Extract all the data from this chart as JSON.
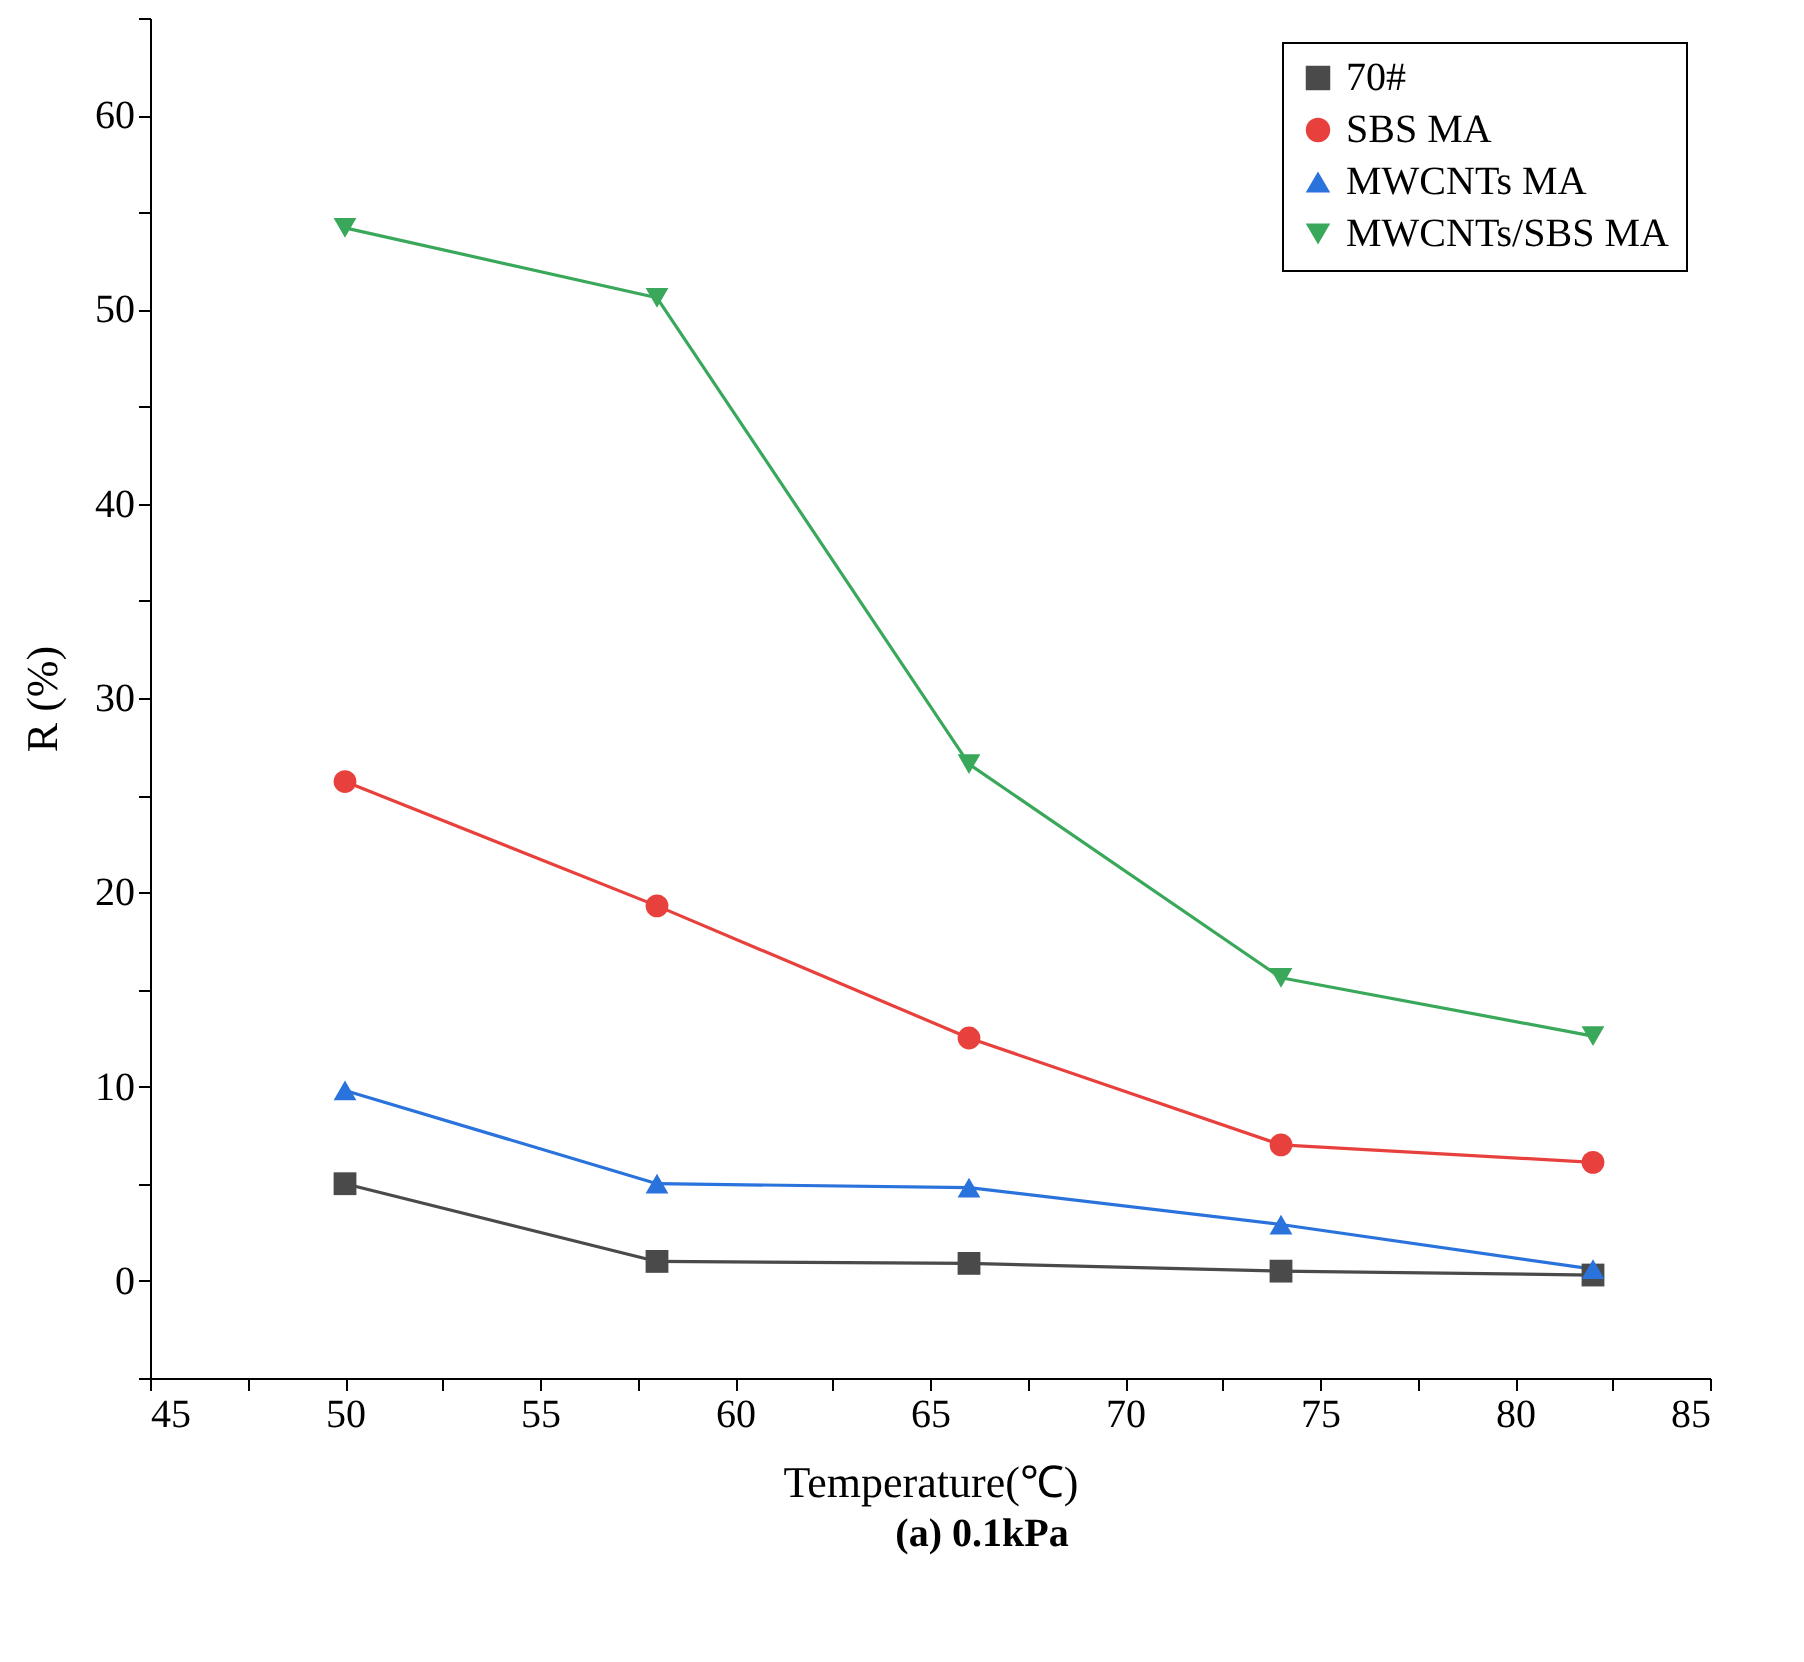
{
  "chart_data": {
    "type": "line",
    "xlabel": "Temperature(℃)",
    "ylabel": "R (%)",
    "annotations": [
      "(a) 0.1kPa"
    ],
    "x": [
      50,
      58,
      66,
      74,
      82
    ],
    "series": [
      {
        "name": "70#",
        "color": "#4a4a4a",
        "marker": "square",
        "values": [
          5.0,
          1.0,
          0.9,
          0.5,
          0.3
        ]
      },
      {
        "name": "SBS MA",
        "color": "#e8403c",
        "marker": "circle",
        "values": [
          25.7,
          19.3,
          12.5,
          7.0,
          6.1
        ]
      },
      {
        "name": "MWCNTs MA",
        "color": "#2b73dc",
        "marker": "triangle",
        "values": [
          9.8,
          5.0,
          4.8,
          2.9,
          0.6
        ]
      },
      {
        "name": "MWCNTs/SBS MA",
        "color": "#3aa85a",
        "marker": "triangle-down",
        "values": [
          54.2,
          50.6,
          26.6,
          15.6,
          12.6
        ]
      }
    ],
    "xlim": [
      45,
      85
    ],
    "xticks": [
      45,
      {
        "value": 47.5,
        "label": null
      },
      50,
      {
        "value": 52.5,
        "label": null
      },
      55,
      {
        "value": 57.5,
        "label": null
      },
      60,
      {
        "value": 62.5,
        "label": null
      },
      65,
      {
        "value": 67.5,
        "label": null
      },
      70,
      {
        "value": 72.5,
        "label": null
      },
      75,
      {
        "value": 77.5,
        "label": null
      },
      80,
      {
        "value": 82.5,
        "label": null
      },
      85
    ],
    "ylim": [
      -5,
      65
    ],
    "yticks": [
      {
        "value": -5,
        "label": null
      },
      0,
      {
        "value": 5,
        "label": null
      },
      10,
      {
        "value": 15,
        "label": null
      },
      20,
      {
        "value": 25,
        "label": null
      },
      30,
      {
        "value": 35,
        "label": null
      },
      40,
      {
        "value": 45,
        "label": null
      },
      50,
      {
        "value": 55,
        "label": null
      },
      60,
      {
        "value": 65,
        "label": null
      }
    ],
    "grid": false,
    "legend": "top right",
    "line_style": "solid"
  }
}
